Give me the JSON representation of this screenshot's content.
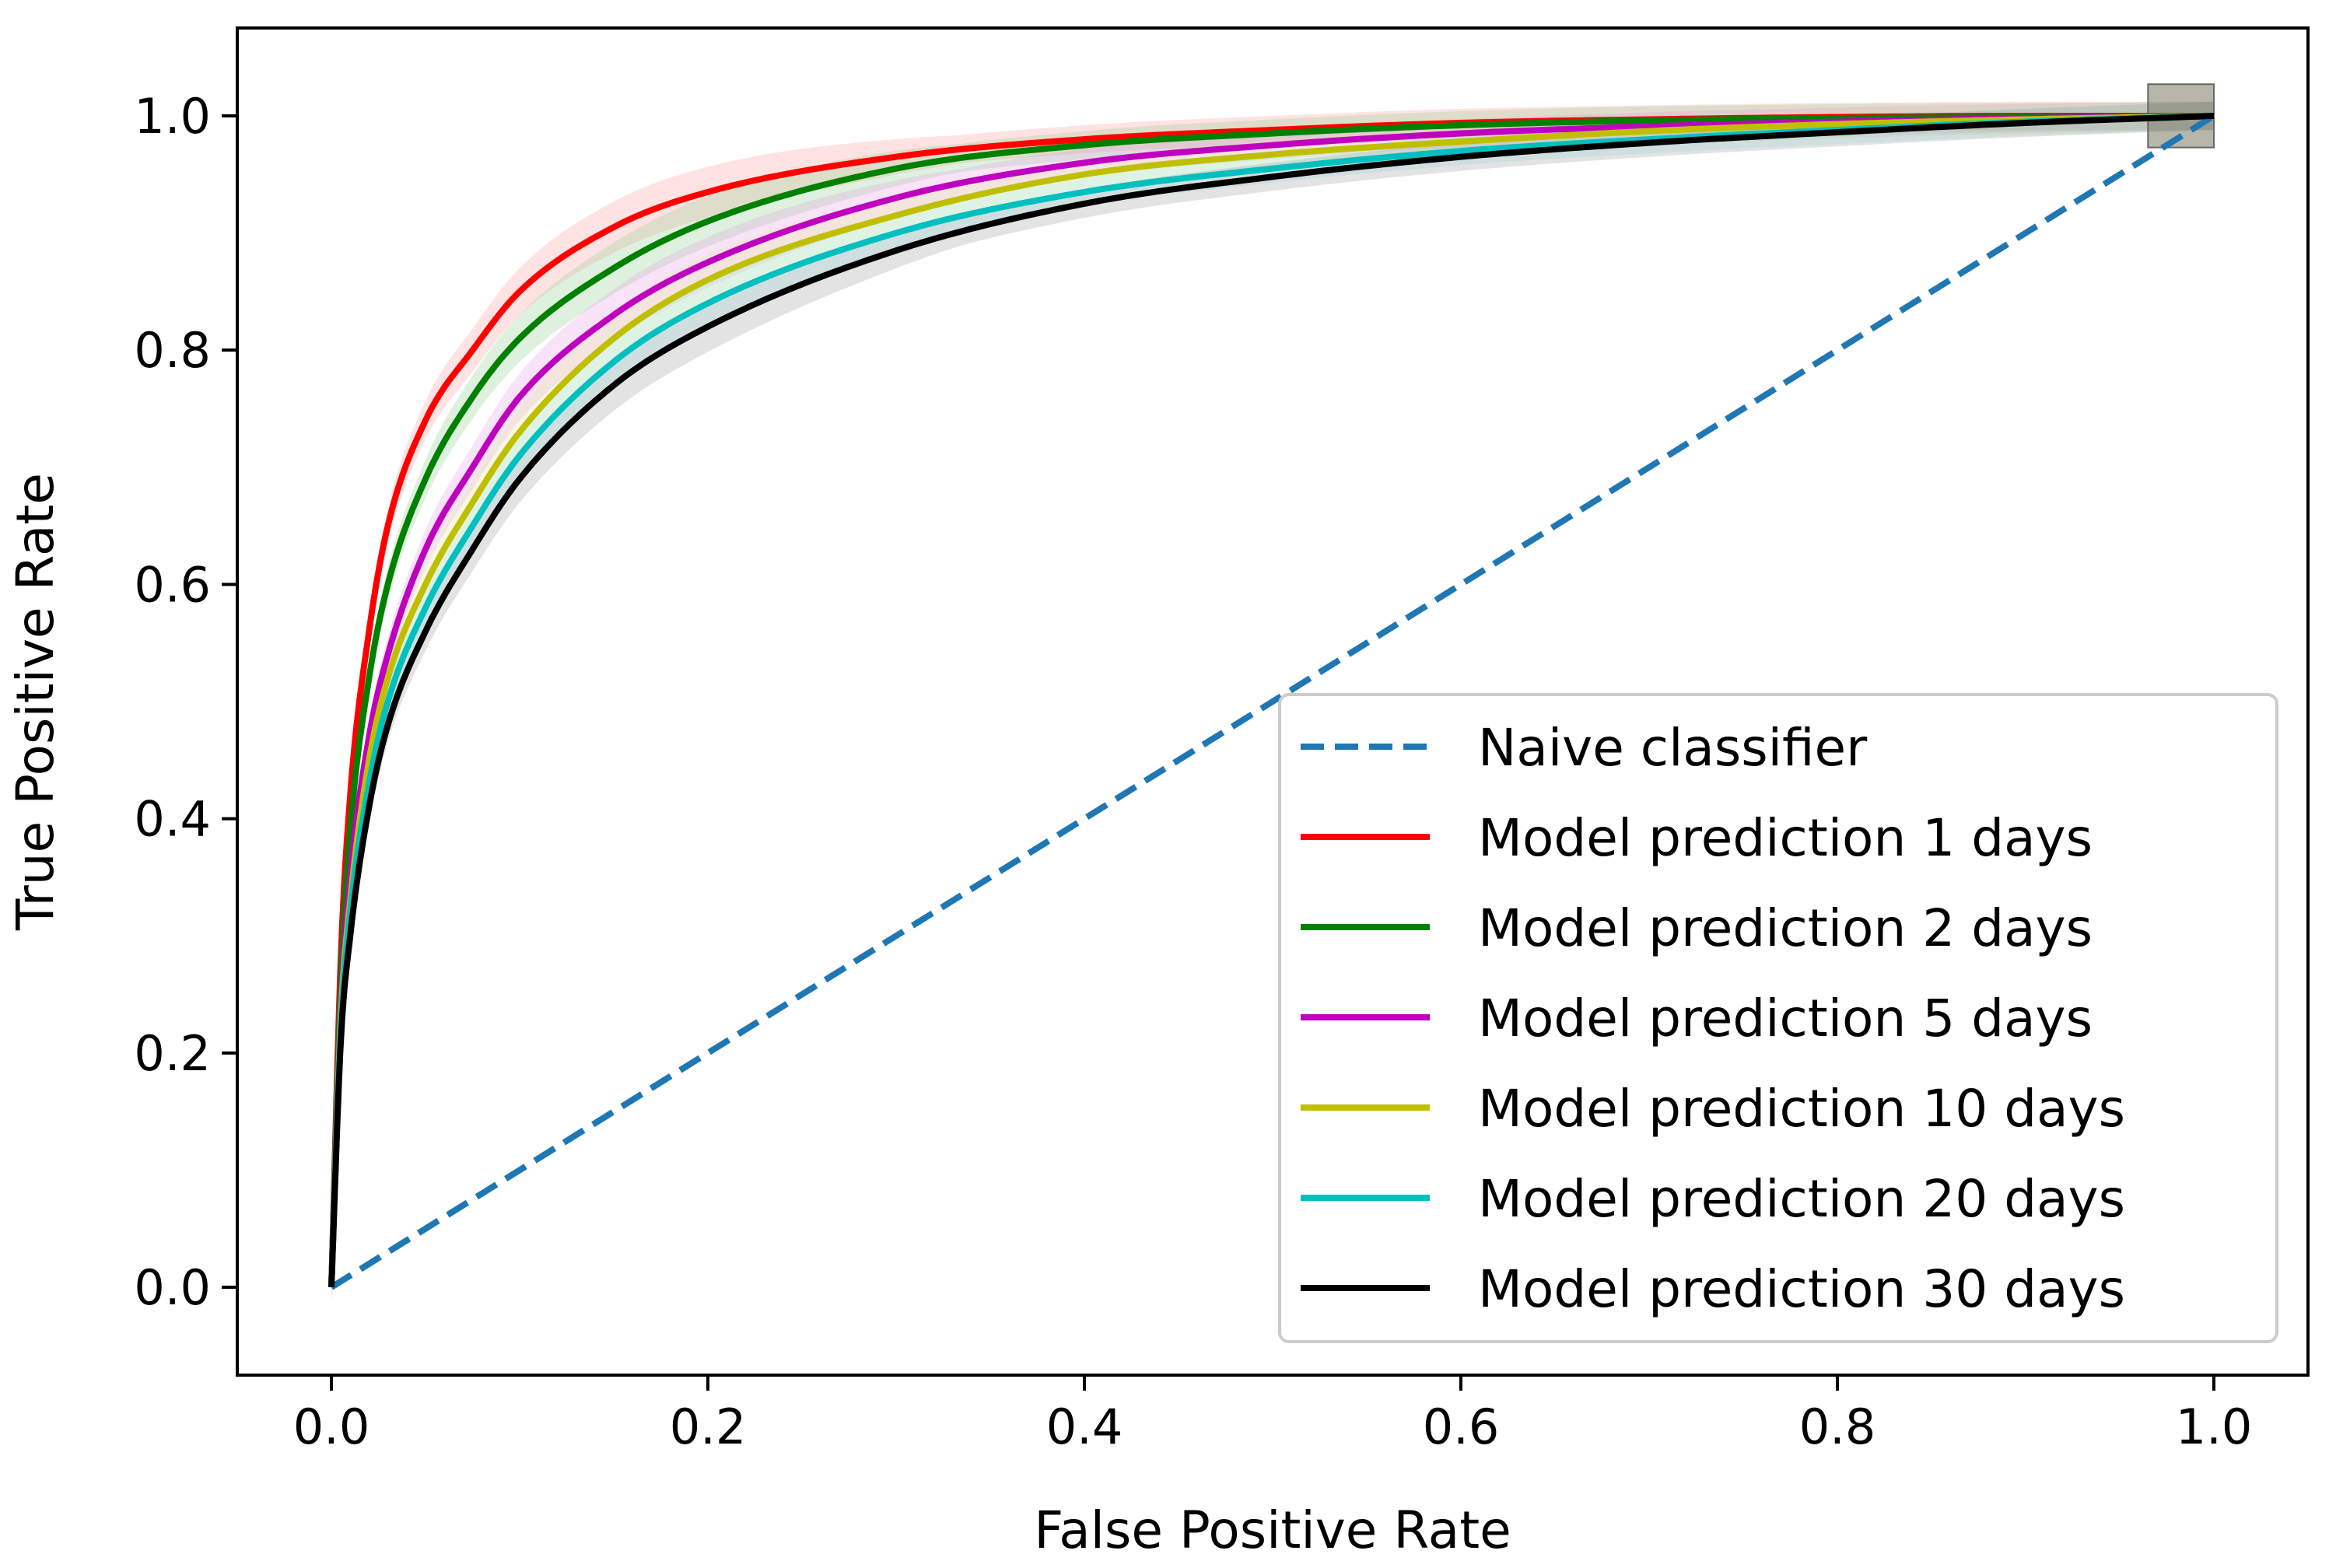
{
  "chart_data": {
    "type": "line",
    "title": "",
    "xlabel": "False Positive Rate",
    "ylabel": "True Positive Rate",
    "xlim": [
      -0.05,
      1.05
    ],
    "ylim": [
      -0.075,
      1.075
    ],
    "xticks": [
      0.0,
      0.2,
      0.4,
      0.6,
      0.8,
      1.0
    ],
    "yticks": [
      0.0,
      0.2,
      0.4,
      0.6,
      0.8,
      1.0
    ],
    "xtick_labels": [
      "0.0",
      "0.2",
      "0.4",
      "0.6",
      "0.8",
      "1.0"
    ],
    "ytick_labels": [
      "0.0",
      "0.2",
      "0.4",
      "0.6",
      "0.8",
      "1.0"
    ],
    "grid": false,
    "legend_position": "lower-right",
    "x": [
      0,
      0.005,
      0.01,
      0.02,
      0.03,
      0.05,
      0.075,
      0.1,
      0.15,
      0.2,
      0.3,
      0.4,
      0.5,
      0.6,
      0.7,
      0.8,
      0.9,
      1.0
    ],
    "baseline": {
      "name": "Naive classifier",
      "color": "#1f77b4",
      "style": "dashed",
      "x": [
        0,
        1
      ],
      "y": [
        0,
        1
      ]
    },
    "series": [
      {
        "name": "Model prediction 1 days",
        "color": "#ff0000",
        "band_color": "#ff9999",
        "values": [
          0,
          0.28,
          0.42,
          0.56,
          0.65,
          0.74,
          0.8,
          0.85,
          0.905,
          0.935,
          0.965,
          0.98,
          0.988,
          0.994,
          0.997,
          0.999,
          1.0,
          1.0
        ]
      },
      {
        "name": "Model prediction 2 days",
        "color": "#008000",
        "band_color": "#88cc88",
        "values": [
          0,
          0.26,
          0.39,
          0.52,
          0.6,
          0.69,
          0.76,
          0.81,
          0.87,
          0.91,
          0.955,
          0.975,
          0.985,
          0.992,
          0.996,
          0.998,
          0.999,
          1.0
        ]
      },
      {
        "name": "Model prediction 5 days",
        "color": "#bf00bf",
        "band_color": "#e699e6",
        "values": [
          0,
          0.24,
          0.35,
          0.47,
          0.54,
          0.63,
          0.7,
          0.76,
          0.83,
          0.875,
          0.93,
          0.96,
          0.975,
          0.985,
          0.991,
          0.995,
          0.998,
          1.0
        ]
      },
      {
        "name": "Model prediction 10 days",
        "color": "#bfbf00",
        "band_color": "#e6e699",
        "values": [
          0,
          0.23,
          0.33,
          0.45,
          0.52,
          0.6,
          0.67,
          0.73,
          0.81,
          0.86,
          0.915,
          0.95,
          0.967,
          0.978,
          0.987,
          0.993,
          0.997,
          1.0
        ]
      },
      {
        "name": "Model prediction 20 days",
        "color": "#00bfbf",
        "band_color": "#99e6e6",
        "values": [
          0,
          0.22,
          0.32,
          0.43,
          0.5,
          0.58,
          0.65,
          0.71,
          0.79,
          0.84,
          0.9,
          0.935,
          0.955,
          0.97,
          0.98,
          0.988,
          0.995,
          1.0
        ]
      },
      {
        "name": "Model prediction 30 days",
        "color": "#000000",
        "band_color": "#999999",
        "values": [
          0,
          0.21,
          0.3,
          0.41,
          0.48,
          0.56,
          0.63,
          0.69,
          0.77,
          0.82,
          0.885,
          0.925,
          0.948,
          0.965,
          0.977,
          0.986,
          0.994,
          1.0
        ]
      }
    ]
  }
}
